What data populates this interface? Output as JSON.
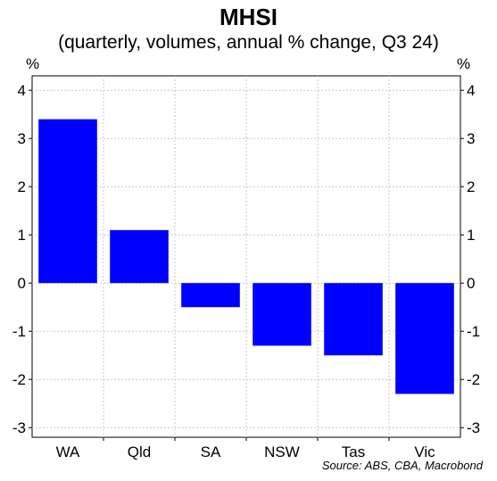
{
  "chart_data": {
    "type": "bar",
    "title": "MHSI",
    "subtitle": "(quarterly, volumes, annual % change, Q3 24)",
    "unit_left": "%",
    "unit_right": "%",
    "categories": [
      "WA",
      "Qld",
      "SA",
      "NSW",
      "Tas",
      "Vic"
    ],
    "values": [
      3.4,
      1.1,
      -0.5,
      -1.3,
      -1.5,
      -2.3
    ],
    "ylim": [
      -3.2,
      4.3
    ],
    "yticks": [
      -3,
      -2,
      -1,
      0,
      1,
      2,
      3,
      4
    ],
    "ytick_labels": [
      "-3",
      "-2",
      "-1",
      "0",
      "1",
      "2",
      "3",
      "4"
    ],
    "grid": true,
    "bar_color": "#0000ff",
    "source": "Source: ABS, CBA, Macrobond"
  }
}
